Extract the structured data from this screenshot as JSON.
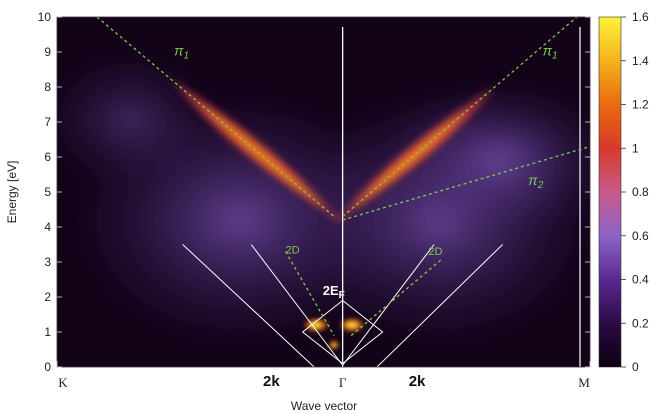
{
  "chart_data": {
    "type": "heatmap",
    "ylabel": "Energy [eV]",
    "xlabel": "Wave vector",
    "ylim": [
      0,
      10
    ],
    "y_ticks": [
      "0",
      "1",
      "2",
      "3",
      "4",
      "5",
      "6",
      "7",
      "8",
      "9",
      "10"
    ],
    "x_points": [
      {
        "label": "K",
        "k": 0
      },
      {
        "label": "Γ",
        "k": 1
      },
      {
        "label": "M",
        "k": 1.866
      }
    ],
    "colorbar": {
      "range": [
        0,
        1.6
      ],
      "ticks": [
        "0",
        "0.2",
        "0.4",
        "0.6",
        "0.8",
        "1",
        "1.2",
        "1.4",
        "1.6"
      ],
      "colors": [
        "#0d0010",
        "#2a0a45",
        "#5a2a90",
        "#8a64c8",
        "#b07aa8",
        "#c8383c",
        "#e04a10",
        "#f09a10",
        "#fff23a"
      ]
    },
    "bands": [
      {
        "name": "π",
        "sub": "1",
        "side": "K",
        "color": "#7ec850",
        "points": [
          [
            0.14,
            10
          ],
          [
            0.97,
            4.3
          ]
        ]
      },
      {
        "name": "π",
        "sub": "1",
        "side": "M",
        "color": "#7ec850",
        "points": [
          [
            1.0,
            4.3
          ],
          [
            1.82,
            10
          ]
        ]
      },
      {
        "name": "π",
        "sub": "2",
        "side": "M",
        "color": "#7ec850",
        "points": [
          [
            1.0,
            4.2
          ],
          [
            1.866,
            6.3
          ]
        ]
      },
      {
        "name": "",
        "sub": "",
        "label": "2D",
        "side": "K",
        "color": "#7ec850",
        "points": [
          [
            0.8,
            3.3
          ],
          [
            0.97,
            0.9
          ]
        ]
      },
      {
        "name": "",
        "sub": "",
        "label": "2D",
        "side": "M",
        "color": "#7ec850",
        "points": [
          [
            1.03,
            0.9
          ],
          [
            1.35,
            3.1
          ]
        ]
      }
    ],
    "annotations": {
      "two_ef": {
        "text": "2E",
        "sub": "F",
        "k": 0.99,
        "E": 2.0
      },
      "two_k_left": {
        "text": "2k",
        "k": 0.74
      },
      "two_k_right": {
        "text": "2k",
        "k": 1.25
      }
    },
    "grid": false
  }
}
